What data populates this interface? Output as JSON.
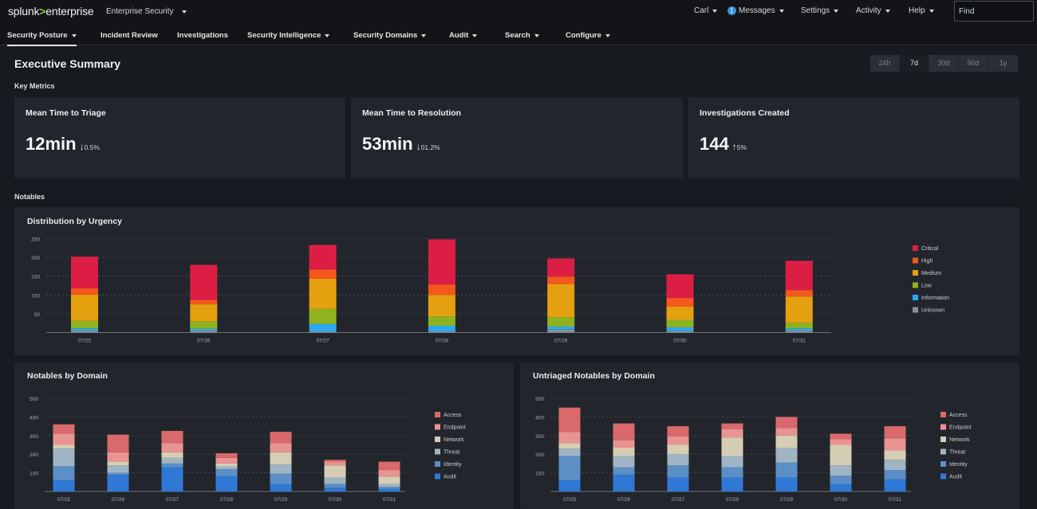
{
  "topbar": {
    "logo_left": "splunk",
    "logo_sep": ">",
    "logo_right": "enterprise",
    "app": "Enterprise Security",
    "user": "Carl",
    "messages_count": "1",
    "messages": "Messages",
    "settings": "Settings",
    "activity": "Activity",
    "help": "Help",
    "find_placeholder": "Find"
  },
  "nav": [
    "Security Posture",
    "Incident Review",
    "Investigations",
    "Security Intelligence",
    "Security Domains",
    "Audit",
    "Search",
    "Configure"
  ],
  "page": {
    "title": "Executive Summary",
    "time_ranges": [
      "24h",
      "7d",
      "30d",
      "90d",
      "1y"
    ],
    "selected_range": "7d",
    "key_metrics_label": "Key Metrics",
    "notables_label": "Notables"
  },
  "metrics": [
    {
      "title": "Mean Time to Triage",
      "value": "12min",
      "direction": "down",
      "change": "0.5%"
    },
    {
      "title": "Mean Time to Resolution",
      "value": "53min",
      "direction": "down",
      "change": "01.2%"
    },
    {
      "title": "Investigations Created",
      "value": "144",
      "direction": "up",
      "change": "5%"
    }
  ],
  "colors": {
    "critical": "#dc1e45",
    "high": "#f4581e",
    "medium": "#e5a00f",
    "low": "#8fb320",
    "information": "#2ca8ee",
    "unknown": "#8a8f96",
    "access": "#d9696b",
    "endpoint": "#e99493",
    "network": "#d6cdb5",
    "threat": "#9fb5c4",
    "identity": "#5b8fc5",
    "audit": "#2f78d6"
  },
  "chart_data": [
    {
      "type": "bar",
      "stacked": true,
      "title": "Distribution by Urgency",
      "categories": [
        "07/25",
        "07/26",
        "07/27",
        "07/28",
        "07/29",
        "07/30",
        "07/31"
      ],
      "yticks": [
        50,
        100,
        150,
        200,
        250
      ],
      "ylim": [
        0,
        250
      ],
      "grid": true,
      "legend": "right",
      "series": [
        {
          "name": "Unknown",
          "color": "#8a8f96",
          "values": [
            5,
            5,
            3,
            3,
            8,
            4,
            5
          ]
        },
        {
          "name": "Information",
          "color": "#2ca8ee",
          "values": [
            6,
            5,
            20,
            15,
            8,
            10,
            6
          ]
        },
        {
          "name": "Low",
          "color": "#8fb320",
          "values": [
            20,
            20,
            40,
            25,
            25,
            20,
            15
          ]
        },
        {
          "name": "Medium",
          "color": "#e5a00f",
          "values": [
            70,
            45,
            80,
            57,
            88,
            35,
            70
          ]
        },
        {
          "name": "High",
          "color": "#f4581e",
          "values": [
            17,
            12,
            25,
            28,
            20,
            23,
            17
          ]
        },
        {
          "name": "Critical",
          "color": "#dc1e45",
          "values": [
            84,
            93,
            65,
            120,
            48,
            63,
            78
          ]
        }
      ]
    },
    {
      "type": "bar",
      "stacked": true,
      "title": "Notables by Domain",
      "categories": [
        "07/25",
        "07/26",
        "07/27",
        "07/28",
        "07/29",
        "07/30",
        "07/31"
      ],
      "yticks": [
        100,
        200,
        300,
        400,
        500
      ],
      "ylim": [
        0,
        500
      ],
      "grid": true,
      "legend": "right",
      "series": [
        {
          "name": "Audit",
          "color": "#2f78d6",
          "values": [
            60,
            90,
            130,
            80,
            40,
            20,
            15
          ]
        },
        {
          "name": "Identity",
          "color": "#5b8fc5",
          "values": [
            75,
            10,
            20,
            40,
            55,
            20,
            10
          ]
        },
        {
          "name": "Threat",
          "color": "#9fb5c4",
          "values": [
            95,
            40,
            30,
            15,
            50,
            35,
            15
          ]
        },
        {
          "name": "Network",
          "color": "#d6cdb5",
          "values": [
            20,
            20,
            30,
            15,
            65,
            65,
            40
          ]
        },
        {
          "name": "Endpoint",
          "color": "#e99493",
          "values": [
            60,
            50,
            50,
            30,
            50,
            20,
            35
          ]
        },
        {
          "name": "Access",
          "color": "#d9696b",
          "values": [
            50,
            95,
            65,
            25,
            60,
            10,
            45
          ]
        }
      ]
    },
    {
      "type": "bar",
      "stacked": true,
      "title": "Untriaged Notables by Domain",
      "categories": [
        "07/25",
        "07/26",
        "07/27",
        "07/28",
        "07/29",
        "07/30",
        "07/31"
      ],
      "yticks": [
        100,
        200,
        300,
        400,
        500
      ],
      "ylim": [
        0,
        500
      ],
      "grid": true,
      "legend": "right",
      "series": [
        {
          "name": "Audit",
          "color": "#2f78d6",
          "values": [
            60,
            90,
            75,
            75,
            75,
            40,
            65
          ]
        },
        {
          "name": "Identity",
          "color": "#5b8fc5",
          "values": [
            130,
            40,
            65,
            55,
            80,
            45,
            50
          ]
        },
        {
          "name": "Threat",
          "color": "#9fb5c4",
          "values": [
            40,
            60,
            60,
            60,
            80,
            55,
            55
          ]
        },
        {
          "name": "Network",
          "color": "#d6cdb5",
          "values": [
            30,
            45,
            50,
            100,
            65,
            110,
            50
          ]
        },
        {
          "name": "Endpoint",
          "color": "#e99493",
          "values": [
            60,
            40,
            45,
            45,
            40,
            30,
            65
          ]
        },
        {
          "name": "Access",
          "color": "#d9696b",
          "values": [
            130,
            90,
            55,
            30,
            60,
            30,
            65
          ]
        }
      ]
    }
  ]
}
